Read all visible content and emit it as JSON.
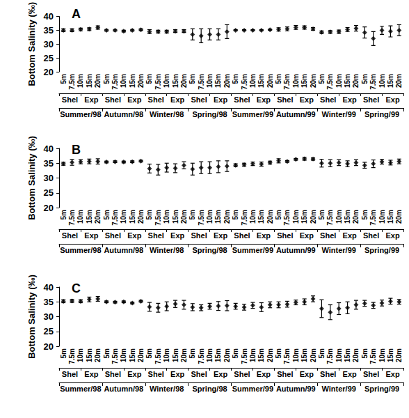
{
  "chart_data": [
    {
      "type": "scatter",
      "title": "A",
      "ylabel": "Bottom Salinity (‰)",
      "categories": [
        "5m",
        "7.5m",
        "10m",
        "15m",
        "20m",
        "5m",
        "7.5m",
        "10m",
        "15m",
        "20m",
        "5m",
        "7.5m",
        "10m",
        "15m",
        "20m",
        "5m",
        "7.5m",
        "10m",
        "15m",
        "20m",
        "5m",
        "7.5m",
        "10m",
        "15m",
        "20m",
        "5m",
        "7.5m",
        "10m",
        "15m",
        "20m",
        "5m",
        "7.5m",
        "10m",
        "15m",
        "20m",
        "5m",
        "7.5m",
        "10m",
        "15m",
        "20m"
      ],
      "site_labels": [
        "Shel",
        "Exp",
        "Shel",
        "Exp",
        "Shel",
        "Exp",
        "Shel",
        "Exp",
        "Shel",
        "Exp",
        "Shel",
        "Exp",
        "Shel",
        "Exp",
        "Shel",
        "Exp"
      ],
      "season_labels": [
        "Summer/98",
        "Autumn/98",
        "Winter/98",
        "Spring/98",
        "Summer/99",
        "Autumn/99",
        "Winter/99",
        "Spring/99"
      ],
      "values": [
        35,
        35,
        35.3,
        35.4,
        36,
        35,
        35,
        34.7,
        35,
        35.2,
        34.5,
        34.5,
        34.5,
        34.7,
        34.7,
        33.5,
        33,
        33.5,
        33.5,
        34.5,
        35,
        35,
        35,
        35,
        35.2,
        35.3,
        35.5,
        36,
        36,
        35.5,
        34.3,
        34.4,
        34.5,
        35.3,
        35.7,
        34.2,
        32,
        35,
        34.6,
        35
      ],
      "errors": [
        0.5,
        0.5,
        0.5,
        0.5,
        0.6,
        0.3,
        0.3,
        0.3,
        0.3,
        0.3,
        0.7,
        0.5,
        0.5,
        0.5,
        0.5,
        2,
        2.5,
        2,
        2,
        2.5,
        0.2,
        0.2,
        0.2,
        0.2,
        0.2,
        0.6,
        0.7,
        0.7,
        0.6,
        0.5,
        0.5,
        0.5,
        0.6,
        0.7,
        1,
        2,
        2.5,
        1.5,
        2,
        2
      ],
      "color": "#000000",
      "marker": "diamond",
      "ylim": [
        20,
        40
      ],
      "yticks": [
        20,
        25,
        30,
        35,
        40
      ],
      "grid": false
    },
    {
      "type": "scatter",
      "title": "B",
      "ylabel": "Bottom Salinity (‰)",
      "categories": [
        "5m",
        "7.5m",
        "10m",
        "15m",
        "20m",
        "5m",
        "7.5m",
        "10m",
        "15m",
        "20m",
        "5m",
        "7.5m",
        "10m",
        "15m",
        "20m",
        "5m",
        "7.5m",
        "10m",
        "15m",
        "20m",
        "5m",
        "7.5m",
        "10m",
        "15m",
        "20m",
        "5m",
        "7.5m",
        "10m",
        "15m",
        "20m",
        "5m",
        "7.5m",
        "10m",
        "15m",
        "20m",
        "5m",
        "7.5m",
        "10m",
        "15m",
        "20m"
      ],
      "site_labels": [
        "Shel",
        "Exp",
        "Shel",
        "Exp",
        "Shel",
        "Exp",
        "Shel",
        "Exp",
        "Shel",
        "Exp",
        "Shel",
        "Exp",
        "Shel",
        "Exp",
        "Shel",
        "Exp"
      ],
      "season_labels": [
        "Summer/98",
        "Autumn/98",
        "Winter/98",
        "Spring/98",
        "Summer/99",
        "Autumn/99",
        "Winter/99",
        "Spring/99"
      ],
      "values": [
        34.8,
        35.3,
        35.5,
        35.6,
        35.6,
        35.4,
        35.5,
        35.4,
        35.5,
        35.7,
        33.2,
        32.8,
        33.5,
        33.3,
        34.3,
        33,
        33.5,
        33.5,
        33.8,
        34,
        34.3,
        34.5,
        34.8,
        34.7,
        35.2,
        35.8,
        35.6,
        36.3,
        36.5,
        36.4,
        35,
        35,
        35.2,
        34.8,
        35.2,
        34.3,
        34.8,
        35.5,
        35.2,
        35.6
      ],
      "errors": [
        0.5,
        1,
        0.7,
        0.8,
        0.9,
        0.3,
        0.3,
        0.3,
        0.3,
        0.3,
        1.5,
        1.8,
        1.5,
        1.5,
        1.2,
        2,
        2,
        2,
        2,
        1.8,
        0.5,
        0.5,
        0.6,
        0.7,
        0.5,
        0.7,
        0.3,
        0.3,
        0.5,
        0.4,
        1.3,
        1.2,
        1,
        1,
        1,
        1,
        1.3,
        0.8,
        0.8,
        0.8
      ],
      "color": "#000000",
      "marker": "diamond",
      "ylim": [
        20,
        40
      ],
      "yticks": [
        20,
        25,
        30,
        35,
        40
      ],
      "grid": false
    },
    {
      "type": "scatter",
      "title": "C",
      "ylabel": "Bottom Salinity (‰)",
      "categories": [
        "5m",
        "7.5m",
        "10m",
        "15m",
        "20m",
        "5m",
        "7.5m",
        "10m",
        "15m",
        "20m",
        "5m",
        "7.5m",
        "10m",
        "15m",
        "20m",
        "5m",
        "7.5m",
        "10m",
        "15m",
        "20m",
        "5m",
        "7.5m",
        "10m",
        "15m",
        "20m",
        "5m",
        "7.5m",
        "10m",
        "15m",
        "20m",
        "5m",
        "7.5m",
        "10m",
        "15m",
        "20m",
        "5m",
        "7.5m",
        "10m",
        "15m",
        "20m"
      ],
      "site_labels": [
        "Shel",
        "Exp",
        "Shel",
        "Exp",
        "Shel",
        "Exp",
        "Shel",
        "Exp",
        "Shel",
        "Exp",
        "Shel",
        "Exp",
        "Shel",
        "Exp",
        "Shel",
        "Exp"
      ],
      "season_labels": [
        "Summer/98",
        "Autumn/98",
        "Winter/98",
        "Spring/98",
        "Summer/99",
        "Autumn/99",
        "Winter/99",
        "Spring/99"
      ],
      "values": [
        35.2,
        35.3,
        35.2,
        35.8,
        36,
        35,
        34.9,
        35,
        34.6,
        35.2,
        33.3,
        33,
        33.5,
        34.3,
        34,
        33.2,
        33,
        33.5,
        33.6,
        33.7,
        33.5,
        33.2,
        33.8,
        33.2,
        34,
        34,
        34.2,
        34.8,
        35,
        36,
        32.7,
        31.5,
        32.7,
        33,
        34,
        34.5,
        33.8,
        34.6,
        35.2,
        35
      ],
      "errors": [
        0.5,
        0.5,
        0.5,
        0.8,
        0.8,
        0.3,
        0.3,
        0.3,
        0.3,
        0.3,
        1.5,
        1.5,
        1.5,
        1.2,
        1.5,
        1.2,
        1,
        1,
        1.5,
        1.7,
        1,
        1,
        1,
        1.5,
        1,
        1,
        1,
        0.8,
        1,
        1,
        3,
        2.5,
        2,
        2,
        1.5,
        1,
        1,
        1,
        1,
        0.8
      ],
      "color": "#000000",
      "marker": "diamond",
      "ylim": [
        20,
        40
      ],
      "yticks": [
        20,
        25,
        30,
        35,
        40
      ],
      "grid": false
    }
  ]
}
